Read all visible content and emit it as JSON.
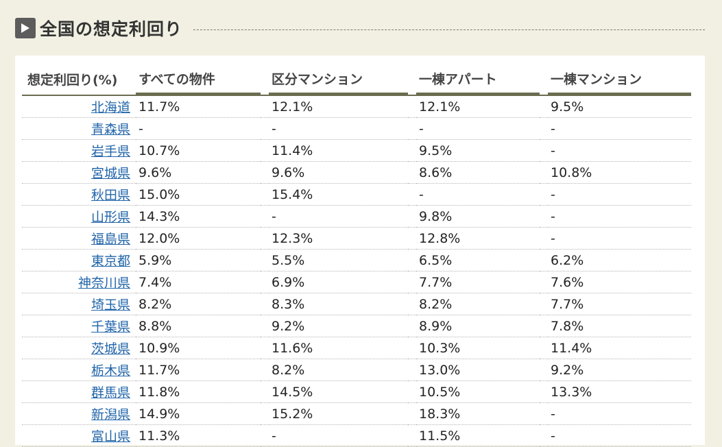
{
  "section": {
    "title": "全国の想定利回り",
    "icon": "play-icon"
  },
  "table": {
    "headers": [
      "想定利回り(%)",
      "すべての物件",
      "区分マンション",
      "一棟アパート",
      "一棟マンション"
    ],
    "rows": [
      {
        "pref": "北海道",
        "all": "11.7%",
        "unit": "12.1%",
        "apart": "12.1%",
        "mansion": "9.5%"
      },
      {
        "pref": "青森県",
        "all": "-",
        "unit": "-",
        "apart": "-",
        "mansion": "-"
      },
      {
        "pref": "岩手県",
        "all": "10.7%",
        "unit": "11.4%",
        "apart": "9.5%",
        "mansion": "-"
      },
      {
        "pref": "宮城県",
        "all": "9.6%",
        "unit": "9.6%",
        "apart": "8.6%",
        "mansion": "10.8%"
      },
      {
        "pref": "秋田県",
        "all": "15.0%",
        "unit": "15.4%",
        "apart": "-",
        "mansion": "-"
      },
      {
        "pref": "山形県",
        "all": "14.3%",
        "unit": "-",
        "apart": "9.8%",
        "mansion": "-"
      },
      {
        "pref": "福島県",
        "all": "12.0%",
        "unit": "12.3%",
        "apart": "12.8%",
        "mansion": "-"
      },
      {
        "pref": "東京都",
        "all": "5.9%",
        "unit": "5.5%",
        "apart": "6.5%",
        "mansion": "6.2%"
      },
      {
        "pref": "神奈川県",
        "all": "7.4%",
        "unit": "6.9%",
        "apart": "7.7%",
        "mansion": "7.6%"
      },
      {
        "pref": "埼玉県",
        "all": "8.2%",
        "unit": "8.3%",
        "apart": "8.2%",
        "mansion": "7.7%"
      },
      {
        "pref": "千葉県",
        "all": "8.8%",
        "unit": "9.2%",
        "apart": "8.9%",
        "mansion": "7.8%"
      },
      {
        "pref": "茨城県",
        "all": "10.9%",
        "unit": "11.6%",
        "apart": "10.3%",
        "mansion": "11.4%"
      },
      {
        "pref": "栃木県",
        "all": "11.7%",
        "unit": "8.2%",
        "apart": "13.0%",
        "mansion": "9.2%"
      },
      {
        "pref": "群馬県",
        "all": "11.8%",
        "unit": "14.5%",
        "apart": "10.5%",
        "mansion": "13.3%"
      },
      {
        "pref": "新潟県",
        "all": "14.9%",
        "unit": "15.2%",
        "apart": "18.3%",
        "mansion": "-"
      },
      {
        "pref": "富山県",
        "all": "11.3%",
        "unit": "-",
        "apart": "11.5%",
        "mansion": "-"
      }
    ]
  },
  "colors": {
    "page_bg": "#f2f0e3",
    "panel_bg": "#ffffff",
    "link": "#2266aa",
    "header_rule": "#6b6b50"
  }
}
